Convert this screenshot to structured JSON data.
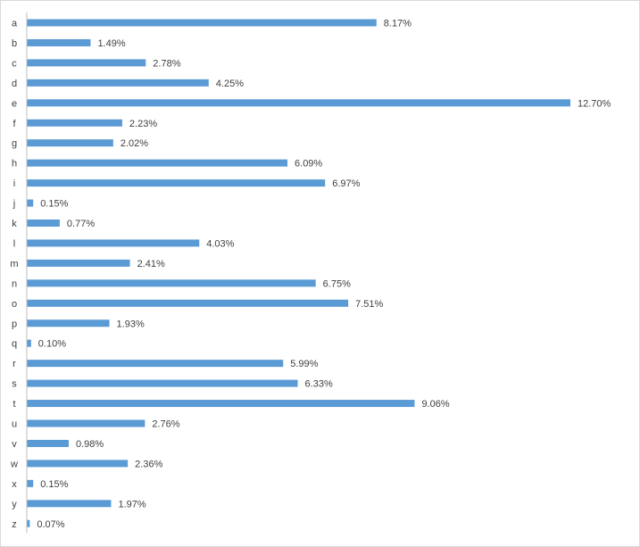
{
  "colors": {
    "bar": "#5B9BD5",
    "axis": "#bfbfbf",
    "text": "#404040",
    "frame": "#d9d9d9"
  },
  "chart_data": {
    "type": "bar",
    "orientation": "horizontal",
    "title": "",
    "xlabel": "",
    "ylabel": "",
    "grid": false,
    "legend": "none",
    "xlim": [
      0,
      12.7
    ],
    "categories": [
      "a",
      "b",
      "c",
      "d",
      "e",
      "f",
      "g",
      "h",
      "i",
      "j",
      "k",
      "l",
      "m",
      "n",
      "o",
      "p",
      "q",
      "r",
      "s",
      "t",
      "u",
      "v",
      "w",
      "x",
      "y",
      "z"
    ],
    "values": [
      8.17,
      1.49,
      2.78,
      4.25,
      12.7,
      2.23,
      2.02,
      6.09,
      6.97,
      0.15,
      0.77,
      4.03,
      2.41,
      6.75,
      7.51,
      1.93,
      0.1,
      5.99,
      6.33,
      9.06,
      2.76,
      0.98,
      2.36,
      0.15,
      1.97,
      0.07
    ],
    "data_labels": [
      "8.17%",
      "1.49%",
      "2.78%",
      "4.25%",
      "12.70%",
      "2.23%",
      "2.02%",
      "6.09%",
      "6.97%",
      "0.15%",
      "0.77%",
      "4.03%",
      "2.41%",
      "6.75%",
      "7.51%",
      "1.93%",
      "0.10%",
      "5.99%",
      "6.33%",
      "9.06%",
      "2.76%",
      "0.98%",
      "2.36%",
      "0.15%",
      "1.97%",
      "0.07%"
    ]
  }
}
